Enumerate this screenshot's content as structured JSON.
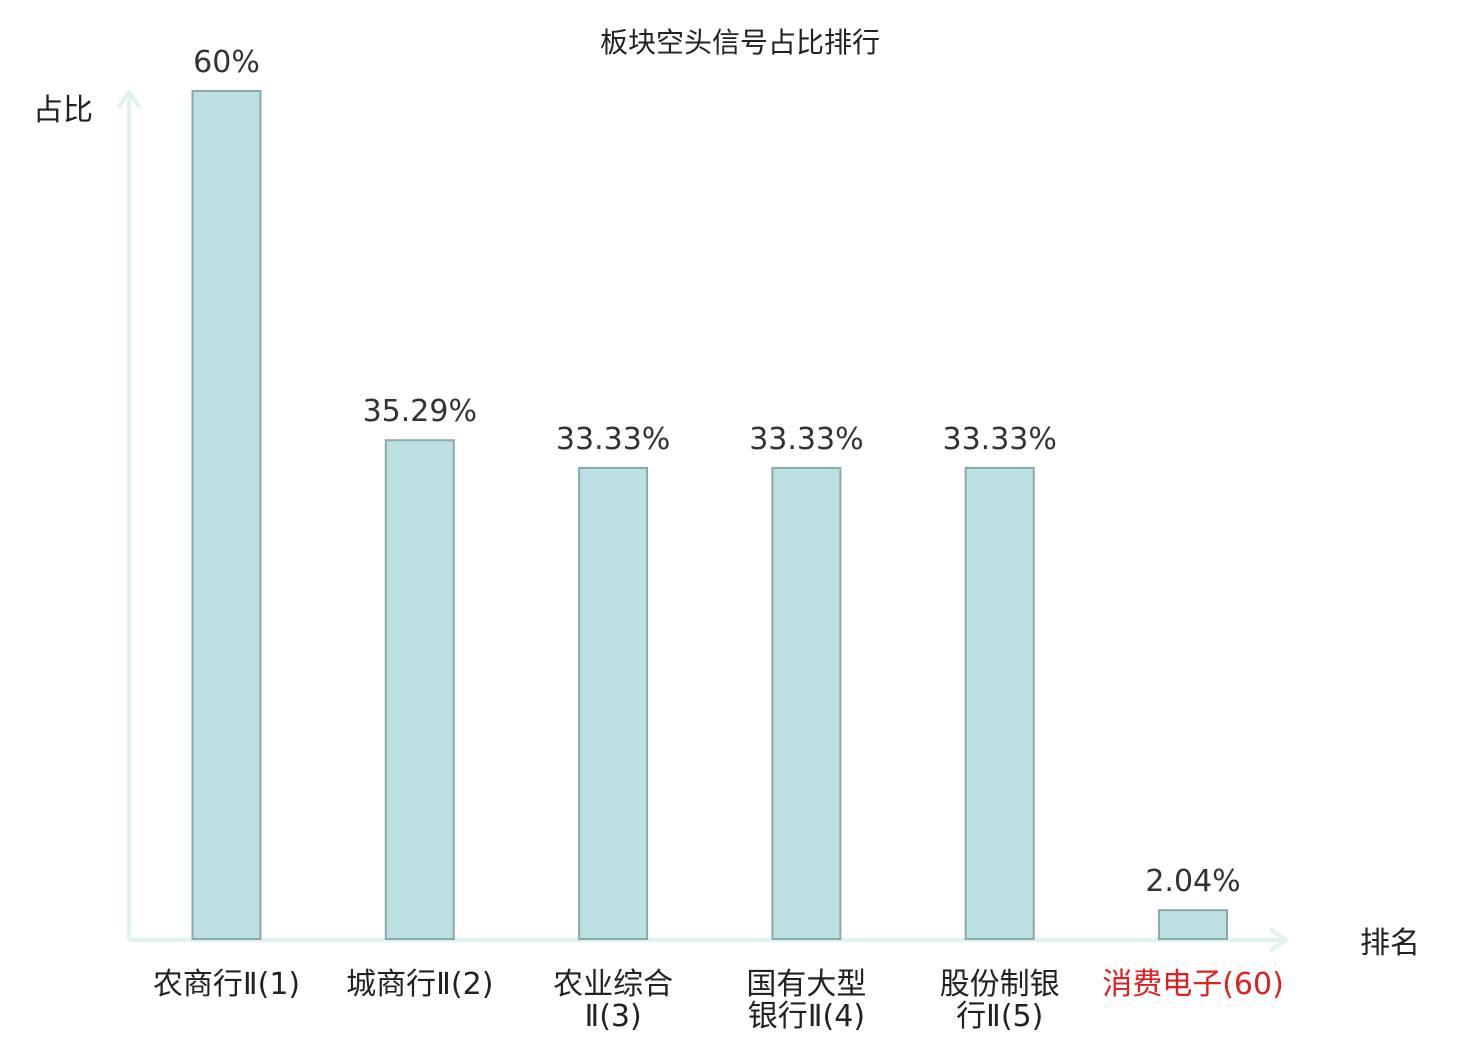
{
  "chart_data": {
    "type": "bar",
    "title": "板块空头信号占比排行",
    "ylabel": "占比",
    "xlabel": "排名",
    "ylim": [
      0,
      60
    ],
    "categories": [
      [
        "农商行Ⅱ(1)"
      ],
      [
        "城商行Ⅱ(2)"
      ],
      [
        "农业综合",
        "Ⅱ(3)"
      ],
      [
        "国有大型",
        "银行Ⅱ(4)"
      ],
      [
        "股份制银",
        "行Ⅱ(5)"
      ],
      [
        "消费电子(60)"
      ]
    ],
    "values": [
      60,
      35.29,
      33.33,
      33.33,
      33.33,
      2.04
    ],
    "value_labels": [
      "60%",
      "35.29%",
      "33.33%",
      "33.33%",
      "33.33%",
      "2.04%"
    ],
    "highlight_index": 5,
    "grid": false,
    "colors": {
      "bar_fill": "#bce0e2",
      "bar_stroke": "#8aa9ab",
      "axis": "#dff2ef",
      "highlight_label": "#e02020"
    }
  }
}
